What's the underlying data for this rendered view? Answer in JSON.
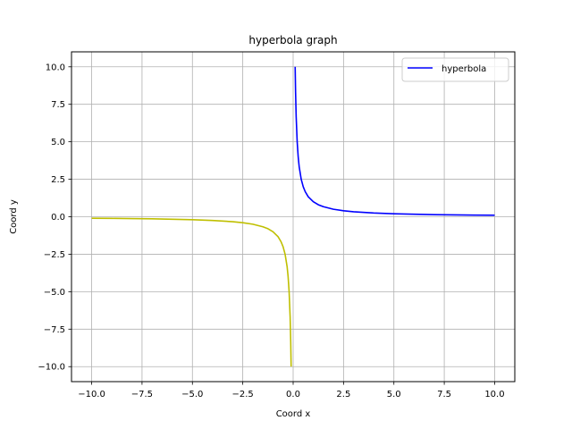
{
  "chart_data": {
    "type": "line",
    "title": "hyperbola graph",
    "xlabel": "Coord  x",
    "ylabel": "Coord  y",
    "xlim": [
      -11.0,
      11.0
    ],
    "ylim": [
      -11.0,
      11.0
    ],
    "x_ticks": [
      -10.0,
      -7.5,
      -5.0,
      -2.5,
      0.0,
      2.5,
      5.0,
      7.5,
      10.0
    ],
    "x_tick_labels": [
      "−10.0",
      "−7.5",
      "−5.0",
      "−2.5",
      "0.0",
      "2.5",
      "5.0",
      "7.5",
      "10.0"
    ],
    "y_ticks": [
      -10.0,
      -7.5,
      -5.0,
      -2.5,
      0.0,
      2.5,
      5.0,
      7.5,
      10.0
    ],
    "y_tick_labels": [
      "−10.0",
      "−7.5",
      "−5.0",
      "−2.5",
      "0.0",
      "2.5",
      "5.0",
      "7.5",
      "10.0"
    ],
    "grid": true,
    "legend_position": "top-right",
    "series": [
      {
        "name": "hyperbola",
        "color": "#0000ff",
        "x": [
          0.1,
          0.12,
          0.15,
          0.2,
          0.25,
          0.3,
          0.4,
          0.5,
          0.6,
          0.75,
          1.0,
          1.25,
          1.5,
          2.0,
          2.5,
          3.0,
          4.0,
          5.0,
          6.0,
          7.0,
          8.0,
          9.0,
          10.0
        ],
        "y": [
          10.0,
          8.33,
          6.67,
          5.0,
          4.0,
          3.33,
          2.5,
          2.0,
          1.67,
          1.33,
          1.0,
          0.8,
          0.67,
          0.5,
          0.4,
          0.33,
          0.25,
          0.2,
          0.17,
          0.14,
          0.125,
          0.11,
          0.1
        ]
      },
      {
        "color": "#bfbf00",
        "x": [
          -10.0,
          -9.0,
          -8.0,
          -7.0,
          -6.0,
          -5.0,
          -4.0,
          -3.0,
          -2.5,
          -2.0,
          -1.5,
          -1.25,
          -1.0,
          -0.75,
          -0.6,
          -0.5,
          -0.4,
          -0.3,
          -0.25,
          -0.2,
          -0.15,
          -0.12,
          -0.1
        ],
        "y": [
          -0.1,
          -0.11,
          -0.125,
          -0.14,
          -0.17,
          -0.2,
          -0.25,
          -0.33,
          -0.4,
          -0.5,
          -0.67,
          -0.8,
          -1.0,
          -1.33,
          -1.67,
          -2.0,
          -2.5,
          -3.33,
          -4.0,
          -5.0,
          -6.67,
          -8.33,
          -10.0
        ]
      }
    ]
  }
}
